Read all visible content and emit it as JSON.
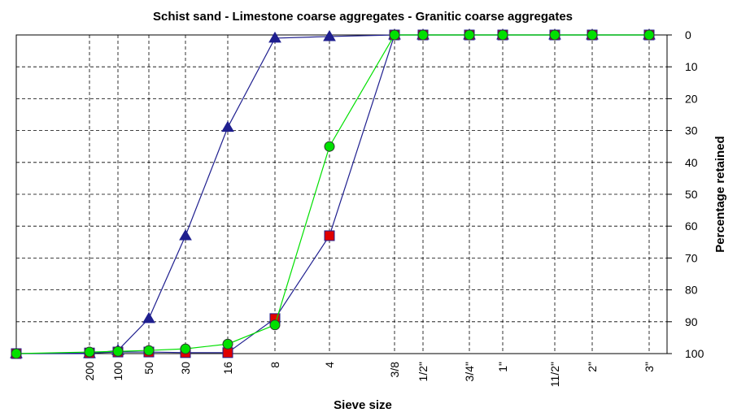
{
  "chart_data": {
    "type": "line",
    "title": "Schist sand - Limestone coarse aggregates - Granitic coarse aggregates",
    "x_label": "Sieve size",
    "y_label": "Percentage retained",
    "categories": [
      null,
      "200",
      "100",
      "50",
      "30",
      "16",
      "8",
      "4",
      "3/8",
      "1/2\"",
      "3/4\"",
      "1\"",
      "11/2\"",
      "2\"",
      "3\""
    ],
    "ylim": [
      0,
      100
    ],
    "y_inverted": true,
    "y_axis_side": "right",
    "yticks": [
      0,
      10,
      20,
      30,
      40,
      50,
      60,
      70,
      80,
      90,
      100
    ],
    "grid": true,
    "series": [
      {
        "color": "#1f1f8f",
        "line_color": "#1f1f8f",
        "marker": "triangle",
        "values": [
          100,
          100,
          99,
          89,
          63,
          29,
          1,
          0.5,
          0,
          0,
          0,
          0,
          0,
          0,
          0
        ]
      },
      {
        "color": "#e00000",
        "line_color": "#1f1f8f",
        "marker": "square",
        "values": [
          100,
          99.8,
          99.5,
          99.5,
          99.7,
          99.7,
          89,
          63,
          0,
          0,
          0,
          0,
          0,
          0,
          0
        ]
      },
      {
        "color": "#00e000",
        "line_color": "#00e000",
        "marker": "circle",
        "values": [
          100,
          99.5,
          99.3,
          99,
          98.5,
          97,
          91,
          35,
          0,
          0,
          0,
          0,
          0,
          0,
          0
        ]
      }
    ]
  }
}
